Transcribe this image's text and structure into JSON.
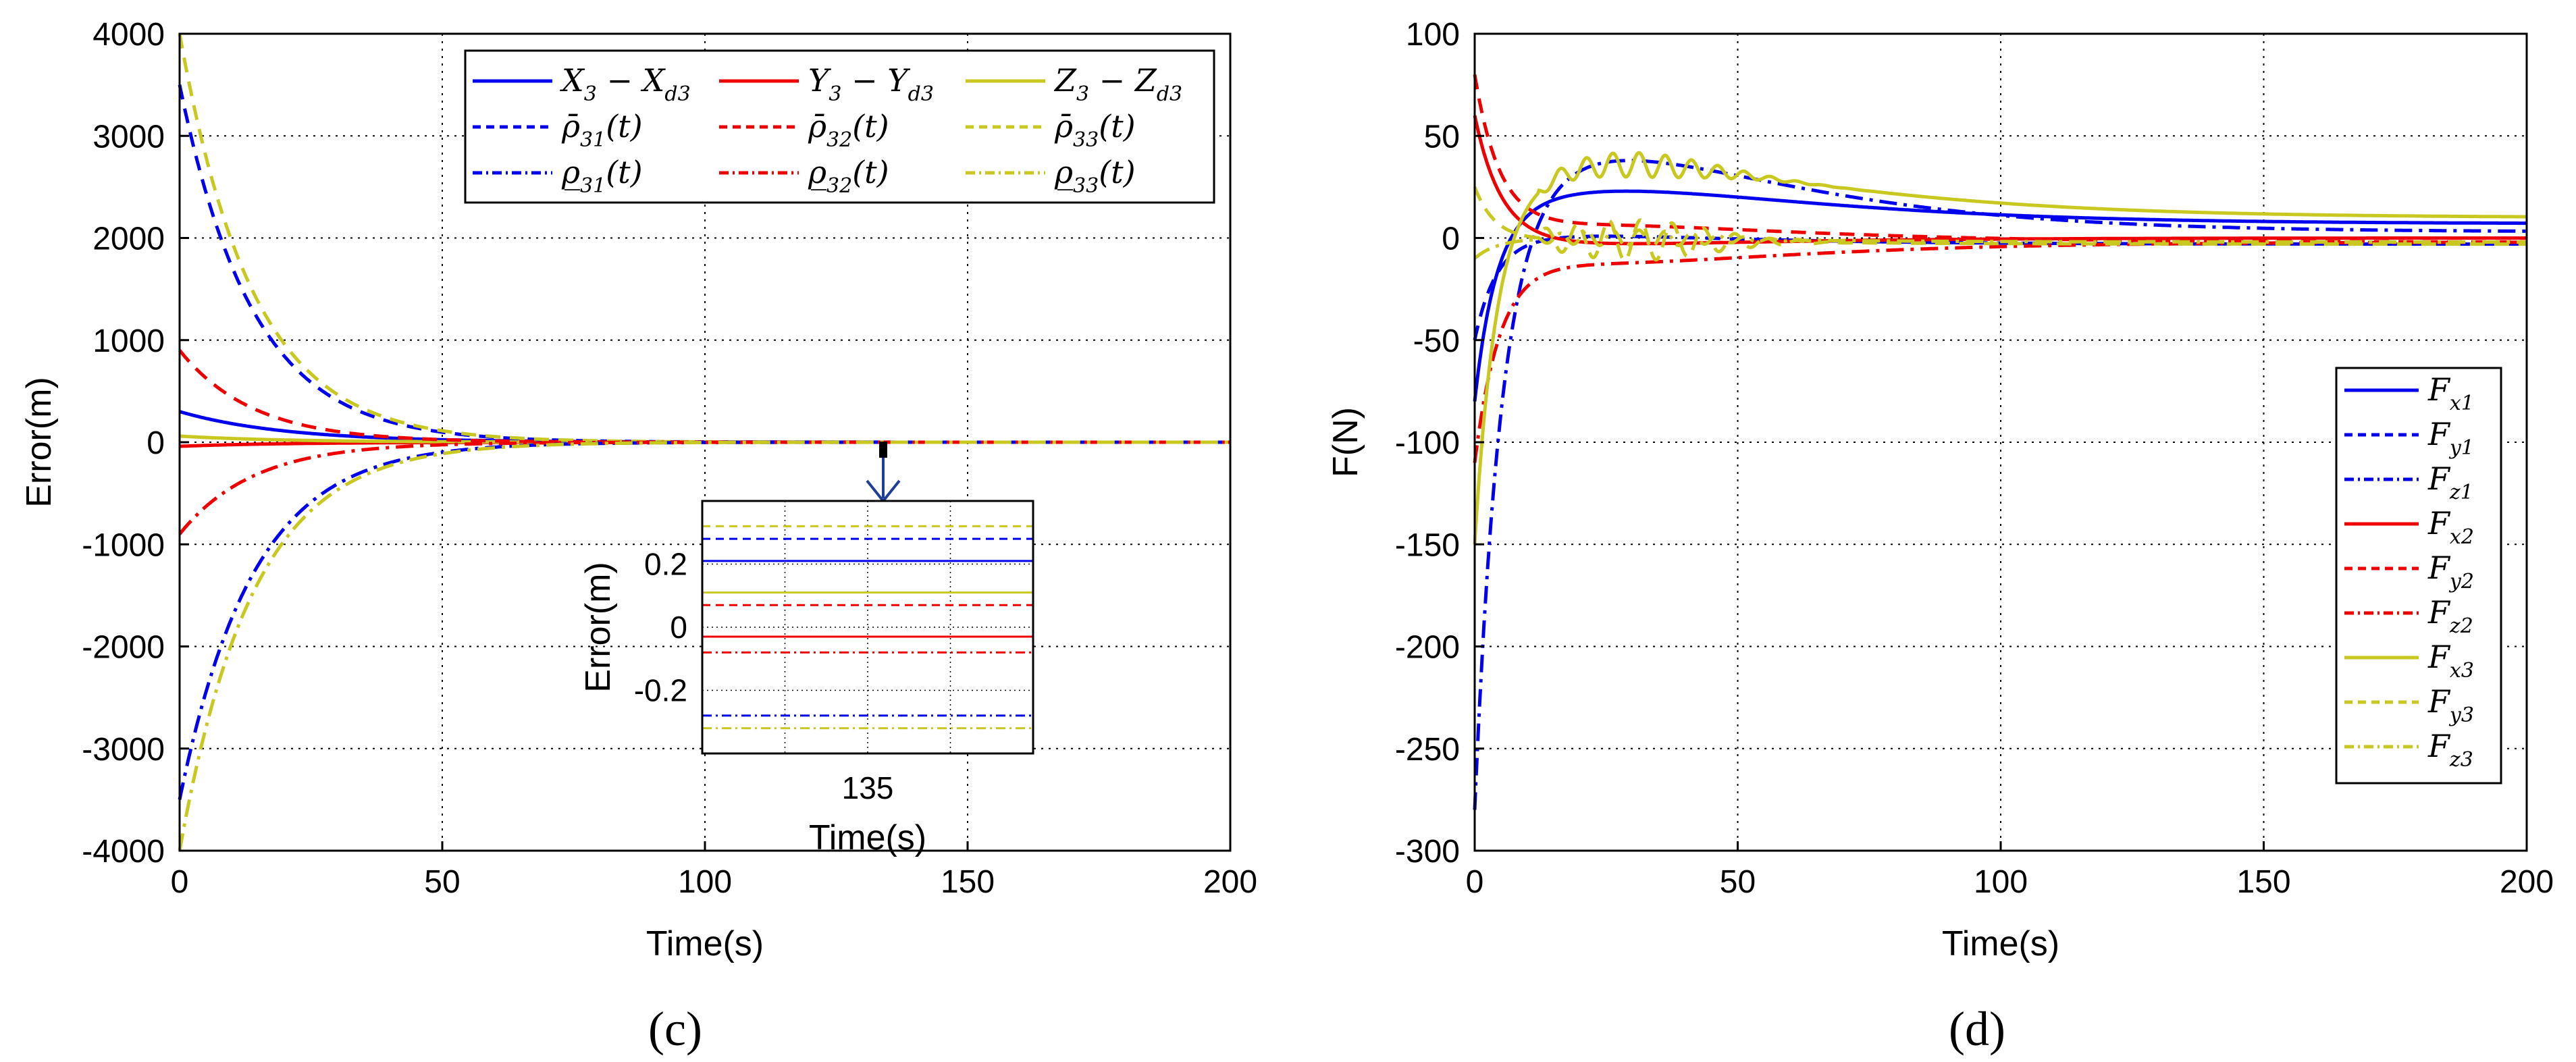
{
  "colors": {
    "blue": "#0000ee",
    "red": "#ee0000",
    "yellow": "#c8c820",
    "grid": "#000000",
    "axis": "#000000"
  },
  "chart_data": [
    {
      "type": "line",
      "caption": "(c)",
      "title": "",
      "xlabel": "Time(s)",
      "ylabel": "Error(m)",
      "xlim": [
        0,
        200
      ],
      "ylim": [
        -4000,
        4000
      ],
      "xticks": [
        0,
        50,
        100,
        150,
        200
      ],
      "xtick_labels": [
        "0",
        "50",
        "100",
        "150",
        "200"
      ],
      "yticks": [
        -4000,
        -3000,
        -2000,
        -1000,
        0,
        1000,
        2000,
        3000,
        4000
      ],
      "ytick_labels": [
        "-4000",
        "-3000",
        "-2000",
        "-1000",
        "0",
        "1000",
        "2000",
        "3000",
        "4000"
      ],
      "grid": true,
      "legend_position": "top-right",
      "legend_columns": 3,
      "series": [
        {
          "id": "X3",
          "main": "X",
          "sub": "3",
          "mid": " − X",
          "sub2": "d3",
          "arg": "",
          "color": "blue",
          "style": "solid",
          "kind": "exp",
          "y0": 300,
          "tau": 20
        },
        {
          "id": "Y3",
          "main": "Y",
          "sub": "3",
          "mid": " − Y",
          "sub2": "d3",
          "arg": "",
          "color": "red",
          "style": "solid",
          "kind": "exp",
          "y0": -40,
          "tau": 20
        },
        {
          "id": "Z3",
          "main": "Z",
          "sub": "3",
          "mid": " − Z",
          "sub2": "d3",
          "arg": "",
          "color": "yellow",
          "style": "solid",
          "kind": "exp",
          "y0": 60,
          "tau": 20
        },
        {
          "id": "rho31u",
          "main": "ρ̄",
          "sub": "31",
          "mid": "",
          "sub2": "",
          "arg": "(t)",
          "color": "blue",
          "style": "dash",
          "kind": "exp",
          "y0": 3500,
          "tau": 14
        },
        {
          "id": "rho32u",
          "main": "ρ̄",
          "sub": "32",
          "mid": "",
          "sub2": "",
          "arg": "(t)",
          "color": "red",
          "style": "dash",
          "kind": "exp",
          "y0": 900,
          "tau": 14
        },
        {
          "id": "rho33u",
          "main": "ρ̄",
          "sub": "33",
          "mid": "",
          "sub2": "",
          "arg": "(t)",
          "color": "yellow",
          "style": "dash",
          "kind": "exp",
          "y0": 4000,
          "tau": 14
        },
        {
          "id": "rho31l",
          "main": "ρ̲",
          "sub": "31",
          "mid": "",
          "sub2": "",
          "arg": "(t)",
          "color": "blue",
          "style": "dashdot",
          "kind": "exp",
          "y0": -3500,
          "tau": 14
        },
        {
          "id": "rho32l",
          "main": "ρ̲",
          "sub": "32",
          "mid": "",
          "sub2": "",
          "arg": "(t)",
          "color": "red",
          "style": "dashdot",
          "kind": "exp",
          "y0": -900,
          "tau": 14
        },
        {
          "id": "rho33l",
          "main": "ρ̲",
          "sub": "33",
          "mid": "",
          "sub2": "",
          "arg": "(t)",
          "color": "yellow",
          "style": "dashdot",
          "kind": "exp",
          "y0": -4000,
          "tau": 14
        }
      ],
      "inset": {
        "ylabel": "Error(m)",
        "xlabel": "Time(s)",
        "xtick_labels": [
          "135"
        ],
        "ytick_values": [
          0.2,
          0,
          -0.2
        ],
        "ytick_labels": [
          "0.2",
          "0",
          "-0.2"
        ],
        "ylim": [
          -0.4,
          0.4
        ],
        "zoom_center_time": 135,
        "lines": [
          {
            "color": "yellow",
            "style": "dash",
            "y": 0.32
          },
          {
            "color": "blue",
            "style": "dash",
            "y": 0.28
          },
          {
            "color": "blue",
            "style": "solid",
            "y": 0.21
          },
          {
            "color": "yellow",
            "style": "solid",
            "y": 0.11
          },
          {
            "color": "red",
            "style": "dash",
            "y": 0.07
          },
          {
            "color": "red",
            "style": "solid",
            "y": -0.03
          },
          {
            "color": "red",
            "style": "dashdot",
            "y": -0.08
          },
          {
            "color": "blue",
            "style": "dashdot",
            "y": -0.28
          },
          {
            "color": "yellow",
            "style": "dashdot",
            "y": -0.32
          }
        ]
      }
    },
    {
      "type": "line",
      "caption": "(d)",
      "title": "",
      "xlabel": "Time(s)",
      "ylabel": "F(N)",
      "xlim": [
        0,
        200
      ],
      "ylim": [
        -300,
        100
      ],
      "xticks": [
        0,
        50,
        100,
        150,
        200
      ],
      "xtick_labels": [
        "0",
        "50",
        "100",
        "150",
        "200"
      ],
      "yticks": [
        -300,
        -250,
        -200,
        -150,
        -100,
        -50,
        0,
        50,
        100
      ],
      "ytick_labels": [
        "-300",
        "-250",
        "-200",
        "-150",
        "-100",
        "-50",
        "0",
        "50",
        "100"
      ],
      "grid": true,
      "legend_position": "right",
      "legend_columns": 1,
      "series": [
        {
          "id": "Fx1",
          "main": "F",
          "sub": "x1",
          "color": "blue",
          "style": "solid",
          "kind": "force",
          "y0": -80,
          "yf": 7,
          "tau": 4,
          "amp": 16,
          "tp": 28,
          "osc": 0,
          "oscT": 5
        },
        {
          "id": "Fy1",
          "main": "F",
          "sub": "y1",
          "color": "blue",
          "style": "dash",
          "kind": "force",
          "y0": -50,
          "yf": -3,
          "tau": 4,
          "amp": 4,
          "tp": 22,
          "osc": 0,
          "oscT": 5
        },
        {
          "id": "Fz1",
          "main": "F",
          "sub": "z1",
          "color": "blue",
          "style": "dashdot",
          "kind": "force",
          "y0": -280,
          "yf": 3,
          "tau": 5,
          "amp": 36,
          "tp": 26,
          "osc": 0,
          "oscT": 5
        },
        {
          "id": "Fx2",
          "main": "F",
          "sub": "x2",
          "color": "red",
          "style": "solid",
          "kind": "force",
          "y0": 60,
          "yf": 0,
          "tau": 5,
          "amp": -3,
          "tp": 24,
          "osc": 0,
          "oscT": 5
        },
        {
          "id": "Fy2",
          "main": "F",
          "sub": "y2",
          "color": "red",
          "style": "dash",
          "kind": "force",
          "y0": 80,
          "yf": -2,
          "tau": 5,
          "amp": 8,
          "tp": 26,
          "osc": 0,
          "oscT": 5
        },
        {
          "id": "Fz2",
          "main": "F",
          "sub": "z2",
          "color": "red",
          "style": "dashdot",
          "kind": "force",
          "y0": -110,
          "yf": -2,
          "tau": 5,
          "amp": -10,
          "tp": 26,
          "osc": 0,
          "oscT": 5
        },
        {
          "id": "Fx3",
          "main": "F",
          "sub": "x3",
          "color": "yellow",
          "style": "solid",
          "kind": "force",
          "y0": -150,
          "yf": 10,
          "tau": 4,
          "amp": 26,
          "tp": 28,
          "osc": 6,
          "oscT": 5
        },
        {
          "id": "Fy3",
          "main": "F",
          "sub": "y3",
          "color": "yellow",
          "style": "dash",
          "kind": "force",
          "y0": 25,
          "yf": -3,
          "tau": 4,
          "amp": 2,
          "tp": 22,
          "osc": 10,
          "oscT": 6
        },
        {
          "id": "Fz3",
          "main": "F",
          "sub": "z3",
          "color": "yellow",
          "style": "dashdot",
          "kind": "force",
          "y0": -10,
          "yf": -2,
          "tau": 4,
          "amp": 2,
          "tp": 22,
          "osc": 4,
          "oscT": 5
        }
      ]
    }
  ]
}
